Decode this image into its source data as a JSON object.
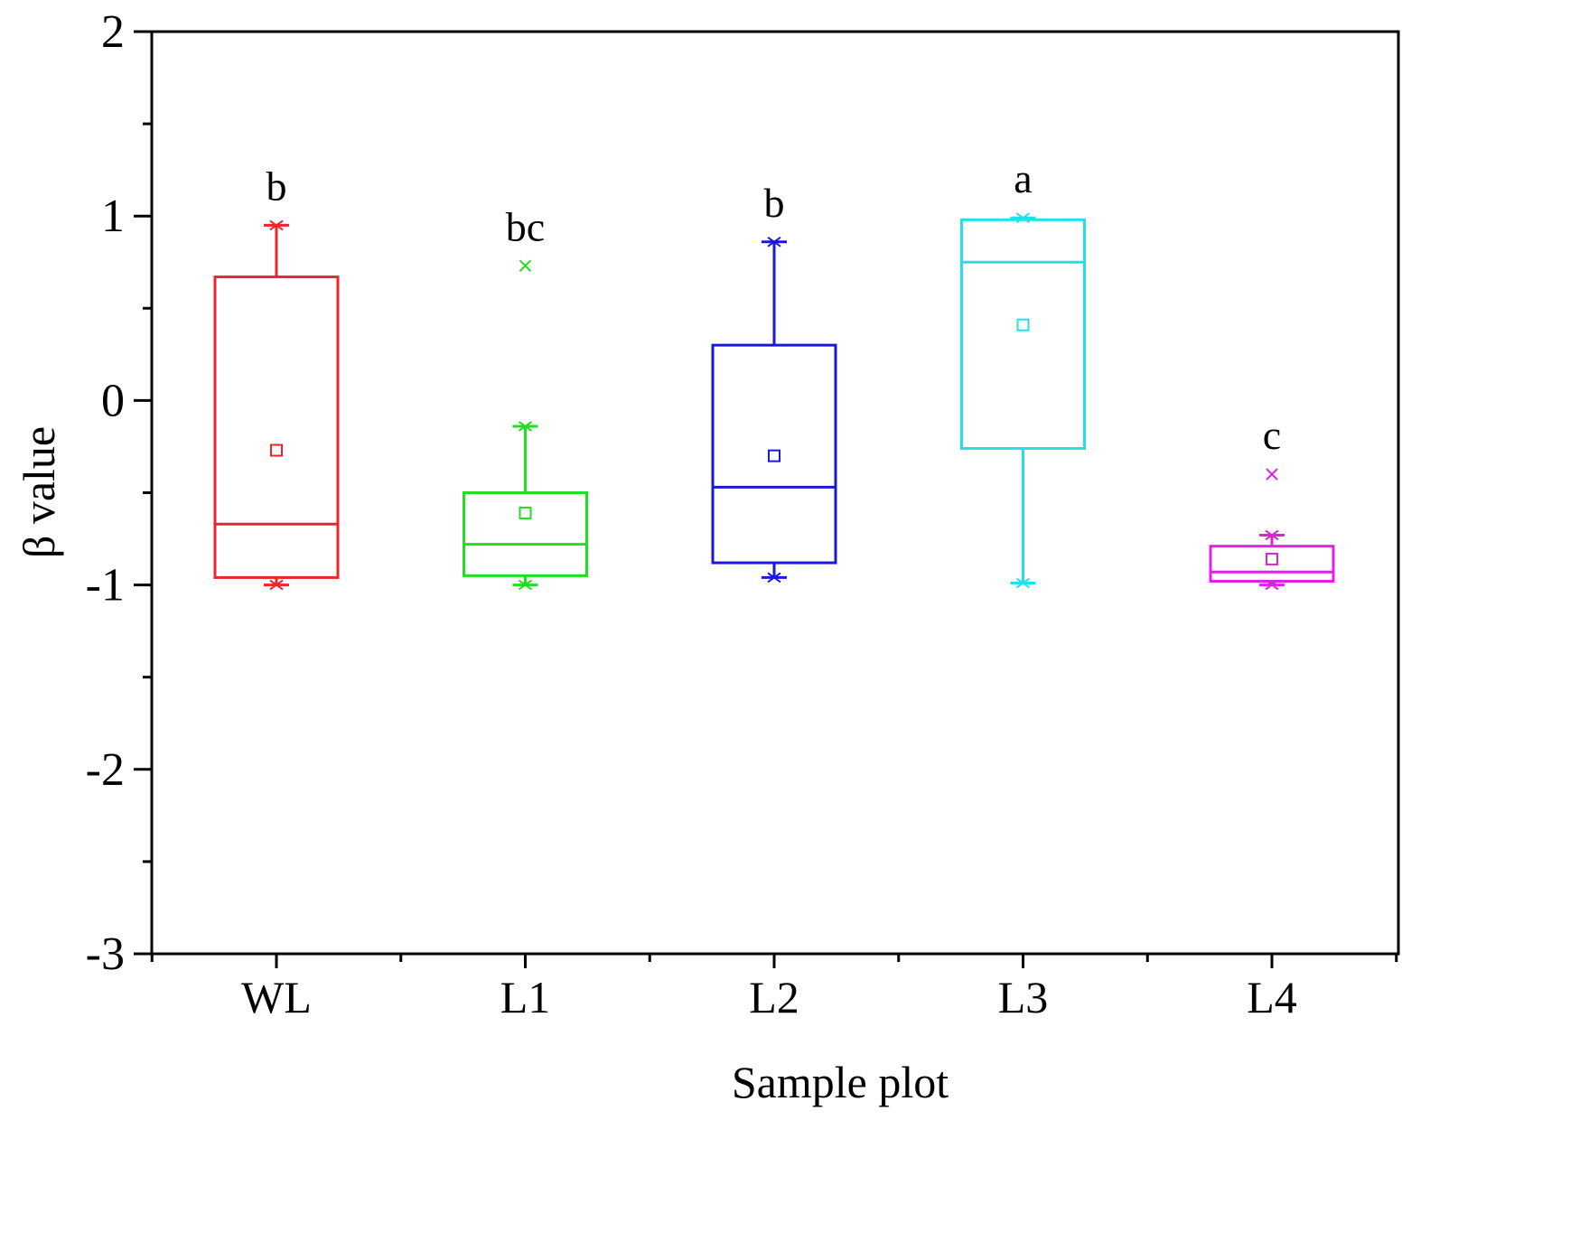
{
  "chart_data": {
    "type": "box",
    "title": "",
    "xlabel": "Sample plot",
    "ylabel": "β value",
    "ylim": [
      -3,
      2
    ],
    "yticks": [
      -3,
      -2,
      -1,
      0,
      1,
      2
    ],
    "yticks_minor_step": 0.5,
    "categories": [
      "WL",
      "L1",
      "L2",
      "L3",
      "L4"
    ],
    "series": [
      {
        "name": "WL",
        "color": "#e8262c",
        "whisker_low": -1.0,
        "q1": -0.96,
        "median": -0.67,
        "q3": 0.67,
        "whisker_high": 0.95,
        "mean": -0.27,
        "outliers": [],
        "significance": "b"
      },
      {
        "name": "L1",
        "color": "#22dd22",
        "whisker_low": -1.0,
        "q1": -0.95,
        "median": -0.78,
        "q3": -0.5,
        "whisker_high": -0.14,
        "mean": -0.61,
        "outliers": [
          0.73
        ],
        "significance": "bc"
      },
      {
        "name": "L2",
        "color": "#1a1ad6",
        "whisker_low": -0.96,
        "q1": -0.88,
        "median": -0.47,
        "q3": 0.3,
        "whisker_high": 0.86,
        "mean": -0.3,
        "outliers": [],
        "significance": "b"
      },
      {
        "name": "L3",
        "color": "#22e0e8",
        "whisker_low": -0.99,
        "q1": -0.26,
        "median": 0.75,
        "q3": 0.98,
        "whisker_high": 0.99,
        "mean": 0.41,
        "outliers": [],
        "significance": "a"
      },
      {
        "name": "L4",
        "color": "#e020e0",
        "whisker_low": -1.0,
        "q1": -0.98,
        "median": -0.93,
        "q3": -0.79,
        "whisker_high": -0.73,
        "mean": -0.86,
        "outliers": [
          -0.4
        ],
        "significance": "c"
      }
    ]
  }
}
